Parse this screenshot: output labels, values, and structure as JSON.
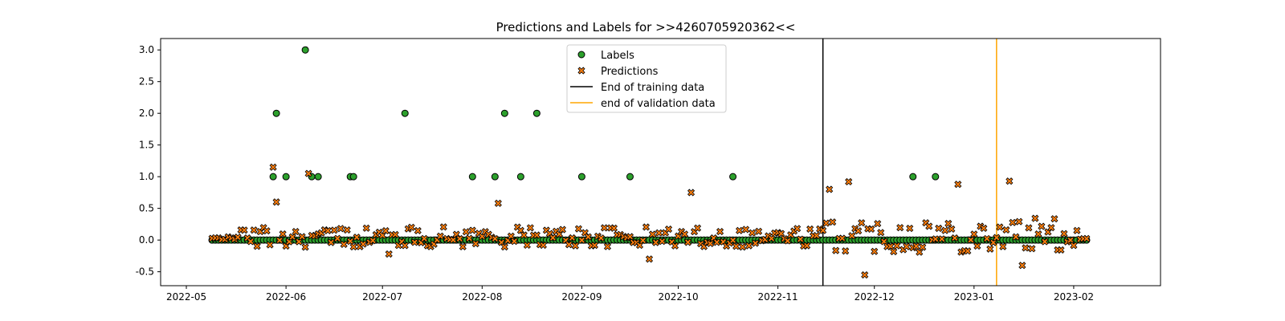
{
  "chart_data": {
    "type": "scatter",
    "title": "Predictions and Labels for >>4260705920362<<",
    "xlabel": "",
    "ylabel": "",
    "xlim": [
      "2022-04-23",
      "2023-02-28"
    ],
    "ylim": [
      -0.72,
      3.18
    ],
    "x_ticks": [
      "2022-05",
      "2022-06",
      "2022-07",
      "2022-08",
      "2022-09",
      "2022-10",
      "2022-11",
      "2022-12",
      "2023-01",
      "2023-02"
    ],
    "y_ticks": [
      -0.5,
      0.0,
      0.5,
      1.0,
      1.5,
      2.0,
      2.5,
      3.0
    ],
    "grid": false,
    "legend_position": "top-center",
    "legend": [
      "Labels",
      "Predictions",
      "End of training data",
      "end of validation data"
    ],
    "date_range": {
      "start": "2022-05-09",
      "end": "2023-02-05"
    },
    "labels_nonzero": [
      {
        "x": "2022-05-29",
        "y": 2.0
      },
      {
        "x": "2022-05-28",
        "y": 1.0
      },
      {
        "x": "2022-06-01",
        "y": 1.0
      },
      {
        "x": "2022-06-07",
        "y": 3.0
      },
      {
        "x": "2022-06-09",
        "y": 1.0
      },
      {
        "x": "2022-06-11",
        "y": 1.0
      },
      {
        "x": "2022-06-21",
        "y": 1.0
      },
      {
        "x": "2022-06-22",
        "y": 1.0
      },
      {
        "x": "2022-07-08",
        "y": 2.0
      },
      {
        "x": "2022-07-29",
        "y": 1.0
      },
      {
        "x": "2022-08-05",
        "y": 1.0
      },
      {
        "x": "2022-08-08",
        "y": 2.0
      },
      {
        "x": "2022-08-13",
        "y": 1.0
      },
      {
        "x": "2022-08-18",
        "y": 2.0
      },
      {
        "x": "2022-09-01",
        "y": 1.0
      },
      {
        "x": "2022-09-16",
        "y": 1.0
      },
      {
        "x": "2022-10-18",
        "y": 1.0
      },
      {
        "x": "2022-12-13",
        "y": 1.0
      },
      {
        "x": "2022-12-20",
        "y": 1.0
      }
    ],
    "predictions_notable": [
      {
        "x": "2022-05-28",
        "y": 1.15
      },
      {
        "x": "2022-05-29",
        "y": 0.6
      },
      {
        "x": "2022-06-08",
        "y": 1.05
      },
      {
        "x": "2022-08-06",
        "y": 0.58
      },
      {
        "x": "2022-10-05",
        "y": 0.75
      },
      {
        "x": "2022-11-17",
        "y": 0.8
      },
      {
        "x": "2022-11-23",
        "y": 0.92
      },
      {
        "x": "2022-11-28",
        "y": -0.55
      },
      {
        "x": "2022-12-27",
        "y": 0.88
      },
      {
        "x": "2023-01-12",
        "y": 0.93
      },
      {
        "x": "2023-01-16",
        "y": -0.4
      },
      {
        "x": "2022-09-22",
        "y": -0.3
      },
      {
        "x": "2022-07-03",
        "y": -0.22
      }
    ],
    "vertical_lines": [
      {
        "name": "End of training data",
        "x": "2022-11-15",
        "color": "#000000"
      },
      {
        "name": "end of validation data",
        "x": "2023-01-08",
        "color": "#ffa500"
      }
    ],
    "colors": {
      "labels": "#2ca02c",
      "predictions": "#ff7f0e",
      "edge": "#000000"
    }
  }
}
